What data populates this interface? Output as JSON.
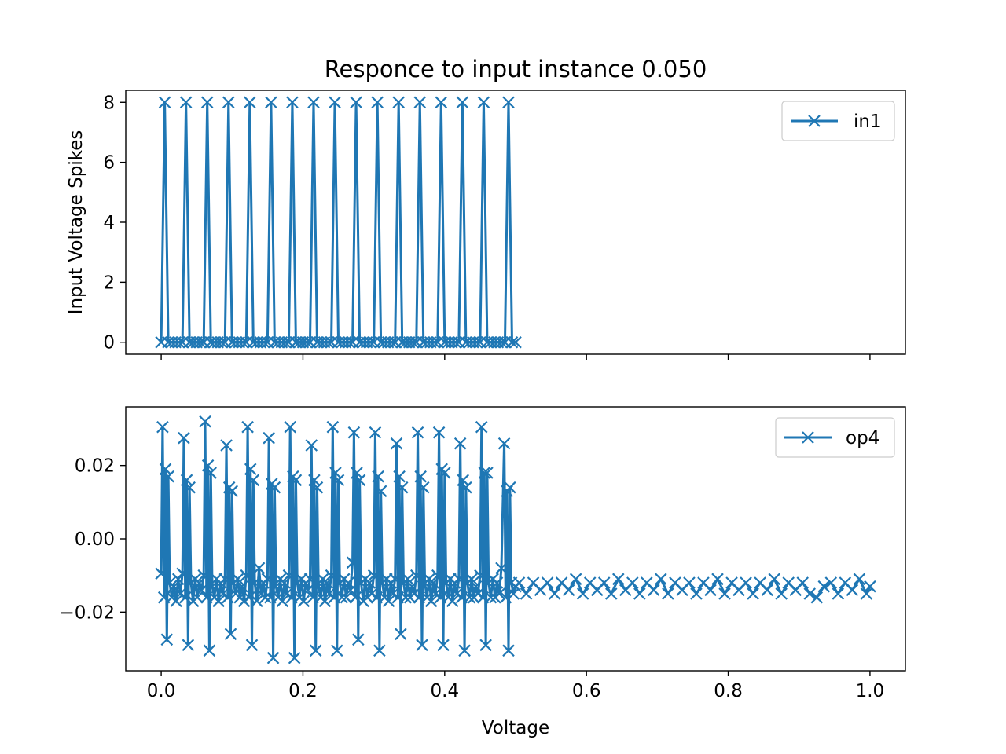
{
  "figure": {
    "title": "Responce to input instance 0.050",
    "xlabel": "Voltage"
  },
  "chart_data": [
    {
      "type": "line",
      "marker": "x",
      "title": "Responce to input instance 0.050",
      "xlabel": "",
      "ylabel": "Input Voltage Spikes",
      "xlim": [
        -0.05,
        1.05
      ],
      "ylim": [
        -0.4,
        8.4
      ],
      "xticks": [
        0.0,
        0.2,
        0.4,
        0.6,
        0.8,
        1.0
      ],
      "yticks": [
        0,
        2,
        4,
        6,
        8
      ],
      "ytick_labels": [
        "0",
        "2",
        "4",
        "6",
        "8"
      ],
      "show_xtick_labels": false,
      "legend_position": "upper right",
      "series": [
        {
          "name": "in1",
          "color": "#1f77b4",
          "dt": 0.005,
          "x_range": [
            0.0,
            0.5
          ],
          "baseline": 0,
          "spike_value": 8,
          "spike_times": [
            0.005,
            0.035,
            0.065,
            0.095,
            0.125,
            0.155,
            0.185,
            0.215,
            0.245,
            0.275,
            0.305,
            0.335,
            0.365,
            0.395,
            0.425,
            0.455,
            0.49
          ]
        }
      ]
    },
    {
      "type": "line",
      "marker": "x",
      "xlabel": "Voltage",
      "ylabel": "",
      "xlim": [
        -0.05,
        1.05
      ],
      "ylim": [
        -0.036,
        0.036
      ],
      "xticks": [
        0.0,
        0.2,
        0.4,
        0.6,
        0.8,
        1.0
      ],
      "xtick_labels": [
        "0.0",
        "0.2",
        "0.4",
        "0.6",
        "0.8",
        "1.0"
      ],
      "yticks": [
        -0.02,
        0.0,
        0.02
      ],
      "ytick_labels": [
        "−0.02",
        "0.00",
        "0.02"
      ],
      "legend_position": "upper right",
      "series": [
        {
          "name": "op4",
          "color": "#1f77b4",
          "points": [
            [
              0.0,
              -0.0095
            ],
            [
              0.002,
              0.0305
            ],
            [
              0.004,
              -0.016
            ],
            [
              0.006,
              0.019
            ],
            [
              0.008,
              -0.0275
            ],
            [
              0.01,
              0.017
            ],
            [
              0.012,
              -0.012
            ],
            [
              0.015,
              -0.016
            ],
            [
              0.018,
              -0.013
            ],
            [
              0.021,
              -0.017
            ],
            [
              0.024,
              -0.011
            ],
            [
              0.027,
              -0.015
            ],
            [
              0.03,
              -0.0095
            ],
            [
              0.032,
              0.0275
            ],
            [
              0.034,
              -0.016
            ],
            [
              0.036,
              0.016
            ],
            [
              0.038,
              -0.029
            ],
            [
              0.04,
              0.014
            ],
            [
              0.042,
              -0.012
            ],
            [
              0.045,
              -0.017
            ],
            [
              0.048,
              -0.011
            ],
            [
              0.051,
              -0.016
            ],
            [
              0.054,
              -0.012
            ],
            [
              0.057,
              -0.014
            ],
            [
              0.06,
              -0.01
            ],
            [
              0.062,
              0.032
            ],
            [
              0.064,
              -0.016
            ],
            [
              0.066,
              0.02
            ],
            [
              0.068,
              -0.0305
            ],
            [
              0.07,
              0.018
            ],
            [
              0.072,
              -0.013
            ],
            [
              0.075,
              -0.016
            ],
            [
              0.078,
              -0.011
            ],
            [
              0.081,
              -0.017
            ],
            [
              0.084,
              -0.012
            ],
            [
              0.087,
              -0.015
            ],
            [
              0.09,
              -0.011
            ],
            [
              0.092,
              0.0255
            ],
            [
              0.094,
              -0.016
            ],
            [
              0.096,
              0.014
            ],
            [
              0.098,
              -0.026
            ],
            [
              0.1,
              0.013
            ],
            [
              0.102,
              -0.012
            ],
            [
              0.105,
              -0.015
            ],
            [
              0.108,
              -0.011
            ],
            [
              0.111,
              -0.016
            ],
            [
              0.114,
              -0.013
            ],
            [
              0.117,
              -0.017
            ],
            [
              0.12,
              -0.01
            ],
            [
              0.122,
              0.0305
            ],
            [
              0.124,
              -0.016
            ],
            [
              0.126,
              0.019
            ],
            [
              0.128,
              -0.029
            ],
            [
              0.13,
              0.016
            ],
            [
              0.132,
              -0.012
            ],
            [
              0.135,
              -0.017
            ],
            [
              0.138,
              -0.008
            ],
            [
              0.141,
              -0.015
            ],
            [
              0.144,
              -0.012
            ],
            [
              0.147,
              -0.016
            ],
            [
              0.15,
              -0.011
            ],
            [
              0.152,
              0.0275
            ],
            [
              0.154,
              -0.016
            ],
            [
              0.156,
              0.015
            ],
            [
              0.158,
              -0.0325
            ],
            [
              0.16,
              0.014
            ],
            [
              0.162,
              -0.013
            ],
            [
              0.165,
              -0.016
            ],
            [
              0.168,
              -0.011
            ],
            [
              0.171,
              -0.017
            ],
            [
              0.174,
              -0.012
            ],
            [
              0.177,
              -0.015
            ],
            [
              0.18,
              -0.01
            ],
            [
              0.182,
              0.0305
            ],
            [
              0.184,
              -0.016
            ],
            [
              0.186,
              0.017
            ],
            [
              0.188,
              -0.0325
            ],
            [
              0.19,
              0.016
            ],
            [
              0.192,
              -0.012
            ],
            [
              0.195,
              -0.016
            ],
            [
              0.198,
              -0.011
            ],
            [
              0.201,
              -0.017
            ],
            [
              0.204,
              -0.012
            ],
            [
              0.207,
              -0.014
            ],
            [
              0.21,
              -0.011
            ],
            [
              0.212,
              0.0255
            ],
            [
              0.214,
              -0.016
            ],
            [
              0.216,
              0.016
            ],
            [
              0.218,
              -0.0305
            ],
            [
              0.22,
              0.014
            ],
            [
              0.222,
              -0.013
            ],
            [
              0.225,
              -0.016
            ],
            [
              0.228,
              -0.011
            ],
            [
              0.231,
              -0.017
            ],
            [
              0.234,
              -0.012
            ],
            [
              0.237,
              -0.015
            ],
            [
              0.24,
              -0.01
            ],
            [
              0.242,
              0.0305
            ],
            [
              0.244,
              -0.016
            ],
            [
              0.246,
              0.018
            ],
            [
              0.248,
              -0.0305
            ],
            [
              0.25,
              0.016
            ],
            [
              0.252,
              -0.012
            ],
            [
              0.255,
              -0.016
            ],
            [
              0.258,
              -0.011
            ],
            [
              0.261,
              -0.016
            ],
            [
              0.264,
              -0.012
            ],
            [
              0.267,
              -0.014
            ],
            [
              0.27,
              -0.0065
            ],
            [
              0.272,
              0.029
            ],
            [
              0.274,
              -0.016
            ],
            [
              0.276,
              0.018
            ],
            [
              0.278,
              -0.0275
            ],
            [
              0.28,
              0.016
            ],
            [
              0.282,
              -0.012
            ],
            [
              0.285,
              -0.017
            ],
            [
              0.288,
              -0.011
            ],
            [
              0.291,
              -0.016
            ],
            [
              0.294,
              -0.012
            ],
            [
              0.297,
              -0.015
            ],
            [
              0.3,
              -0.01
            ],
            [
              0.302,
              0.029
            ],
            [
              0.304,
              -0.016
            ],
            [
              0.306,
              0.017
            ],
            [
              0.308,
              -0.0305
            ],
            [
              0.31,
              0.013
            ],
            [
              0.312,
              -0.012
            ],
            [
              0.315,
              -0.016
            ],
            [
              0.318,
              -0.011
            ],
            [
              0.321,
              -0.017
            ],
            [
              0.324,
              -0.012
            ],
            [
              0.327,
              -0.015
            ],
            [
              0.33,
              -0.011
            ],
            [
              0.332,
              0.026
            ],
            [
              0.334,
              -0.016
            ],
            [
              0.336,
              0.017
            ],
            [
              0.338,
              -0.026
            ],
            [
              0.34,
              0.014
            ],
            [
              0.342,
              -0.012
            ],
            [
              0.345,
              -0.016
            ],
            [
              0.348,
              -0.011
            ],
            [
              0.351,
              -0.016
            ],
            [
              0.354,
              -0.013
            ],
            [
              0.357,
              -0.015
            ],
            [
              0.36,
              -0.01
            ],
            [
              0.362,
              0.029
            ],
            [
              0.364,
              -0.016
            ],
            [
              0.366,
              0.017
            ],
            [
              0.368,
              -0.029
            ],
            [
              0.37,
              0.014
            ],
            [
              0.372,
              -0.012
            ],
            [
              0.375,
              -0.016
            ],
            [
              0.378,
              -0.011
            ],
            [
              0.381,
              -0.017
            ],
            [
              0.384,
              -0.012
            ],
            [
              0.387,
              -0.015
            ],
            [
              0.39,
              -0.01
            ],
            [
              0.392,
              0.029
            ],
            [
              0.394,
              -0.016
            ],
            [
              0.396,
              0.019
            ],
            [
              0.398,
              -0.029
            ],
            [
              0.4,
              0.018
            ],
            [
              0.402,
              -0.012
            ],
            [
              0.405,
              -0.016
            ],
            [
              0.408,
              -0.011
            ],
            [
              0.411,
              -0.017
            ],
            [
              0.414,
              -0.012
            ],
            [
              0.417,
              -0.015
            ],
            [
              0.42,
              -0.011
            ],
            [
              0.422,
              0.026
            ],
            [
              0.424,
              -0.016
            ],
            [
              0.426,
              0.016
            ],
            [
              0.428,
              -0.0305
            ],
            [
              0.43,
              0.014
            ],
            [
              0.432,
              -0.012
            ],
            [
              0.435,
              -0.016
            ],
            [
              0.438,
              -0.011
            ],
            [
              0.441,
              -0.016
            ],
            [
              0.444,
              -0.013
            ],
            [
              0.447,
              -0.015
            ],
            [
              0.45,
              -0.01
            ],
            [
              0.452,
              0.0305
            ],
            [
              0.454,
              -0.016
            ],
            [
              0.456,
              0.018
            ],
            [
              0.458,
              -0.029
            ],
            [
              0.46,
              0.018
            ],
            [
              0.462,
              -0.012
            ],
            [
              0.465,
              -0.016
            ],
            [
              0.468,
              -0.011
            ],
            [
              0.471,
              -0.016
            ],
            [
              0.474,
              -0.012
            ],
            [
              0.477,
              -0.015
            ],
            [
              0.48,
              -0.008
            ],
            [
              0.484,
              0.026
            ],
            [
              0.486,
              -0.016
            ],
            [
              0.488,
              0.013
            ],
            [
              0.49,
              -0.0305
            ],
            [
              0.492,
              0.014
            ],
            [
              0.494,
              -0.012
            ],
            [
              0.497,
              -0.015
            ],
            [
              0.5,
              -0.013
            ],
            [
              0.505,
              -0.012
            ],
            [
              0.515,
              -0.015
            ],
            [
              0.525,
              -0.012
            ],
            [
              0.535,
              -0.014
            ],
            [
              0.545,
              -0.012
            ],
            [
              0.555,
              -0.015
            ],
            [
              0.565,
              -0.012
            ],
            [
              0.575,
              -0.014
            ],
            [
              0.585,
              -0.011
            ],
            [
              0.595,
              -0.015
            ],
            [
              0.605,
              -0.012
            ],
            [
              0.615,
              -0.014
            ],
            [
              0.625,
              -0.012
            ],
            [
              0.635,
              -0.015
            ],
            [
              0.645,
              -0.011
            ],
            [
              0.655,
              -0.014
            ],
            [
              0.665,
              -0.012
            ],
            [
              0.675,
              -0.015
            ],
            [
              0.685,
              -0.012
            ],
            [
              0.695,
              -0.014
            ],
            [
              0.705,
              -0.011
            ],
            [
              0.715,
              -0.015
            ],
            [
              0.725,
              -0.012
            ],
            [
              0.735,
              -0.014
            ],
            [
              0.745,
              -0.012
            ],
            [
              0.755,
              -0.015
            ],
            [
              0.765,
              -0.012
            ],
            [
              0.775,
              -0.014
            ],
            [
              0.785,
              -0.011
            ],
            [
              0.795,
              -0.015
            ],
            [
              0.805,
              -0.012
            ],
            [
              0.815,
              -0.014
            ],
            [
              0.825,
              -0.012
            ],
            [
              0.835,
              -0.015
            ],
            [
              0.845,
              -0.012
            ],
            [
              0.855,
              -0.014
            ],
            [
              0.865,
              -0.011
            ],
            [
              0.875,
              -0.015
            ],
            [
              0.885,
              -0.012
            ],
            [
              0.895,
              -0.014
            ],
            [
              0.905,
              -0.012
            ],
            [
              0.915,
              -0.015
            ],
            [
              0.925,
              -0.016
            ],
            [
              0.935,
              -0.013
            ],
            [
              0.945,
              -0.012
            ],
            [
              0.955,
              -0.015
            ],
            [
              0.965,
              -0.012
            ],
            [
              0.975,
              -0.014
            ],
            [
              0.985,
              -0.011
            ],
            [
              0.995,
              -0.015
            ],
            [
              1.0,
              -0.013
            ]
          ]
        }
      ]
    }
  ]
}
